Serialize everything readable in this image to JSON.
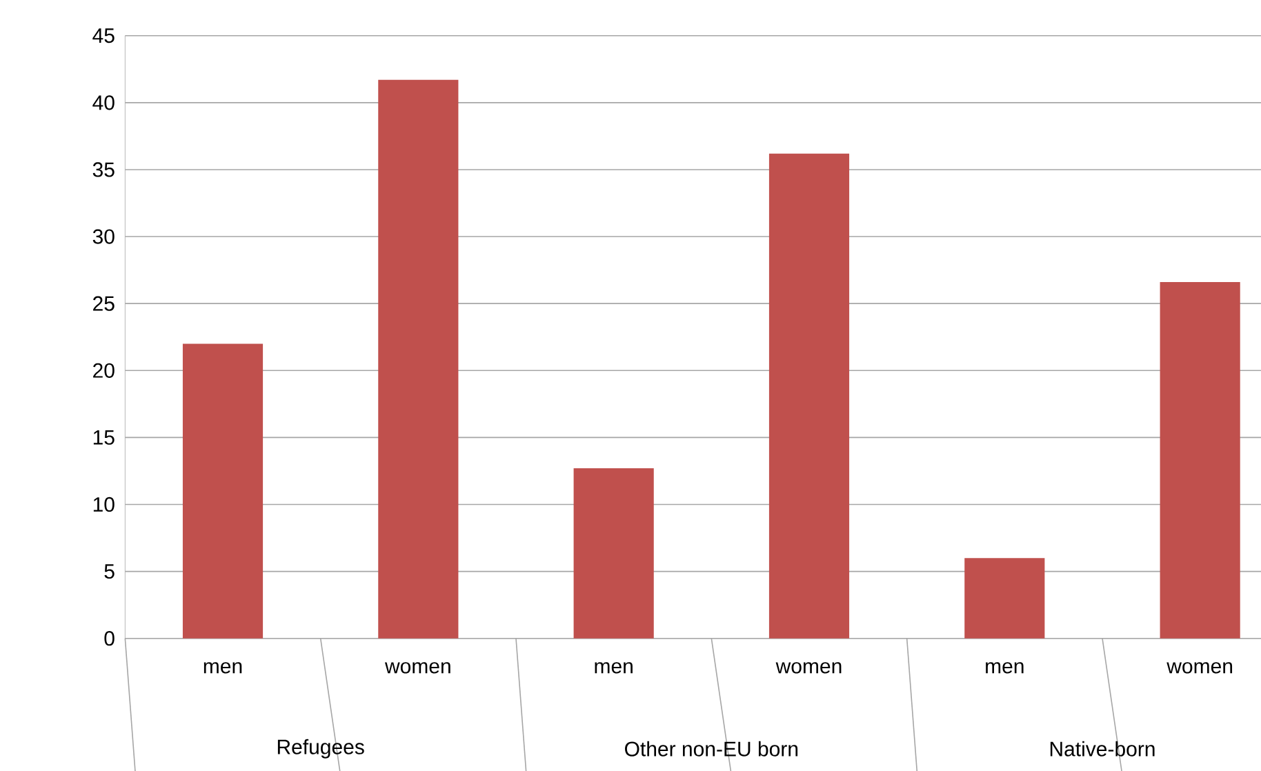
{
  "chart_data": {
    "type": "bar",
    "categories": [
      "men",
      "women",
      "men",
      "women",
      "men",
      "women"
    ],
    "values": [
      22.0,
      41.7,
      12.7,
      36.2,
      6.0,
      26.6
    ],
    "color": "#c0504d",
    "ylim": [
      0,
      45
    ],
    "yticks": [
      0,
      5,
      10,
      15,
      20,
      25,
      30,
      35,
      40,
      45
    ],
    "grid": "y",
    "annotations": [
      "Refugees",
      "Other non-EU born",
      "Native-born"
    ]
  }
}
